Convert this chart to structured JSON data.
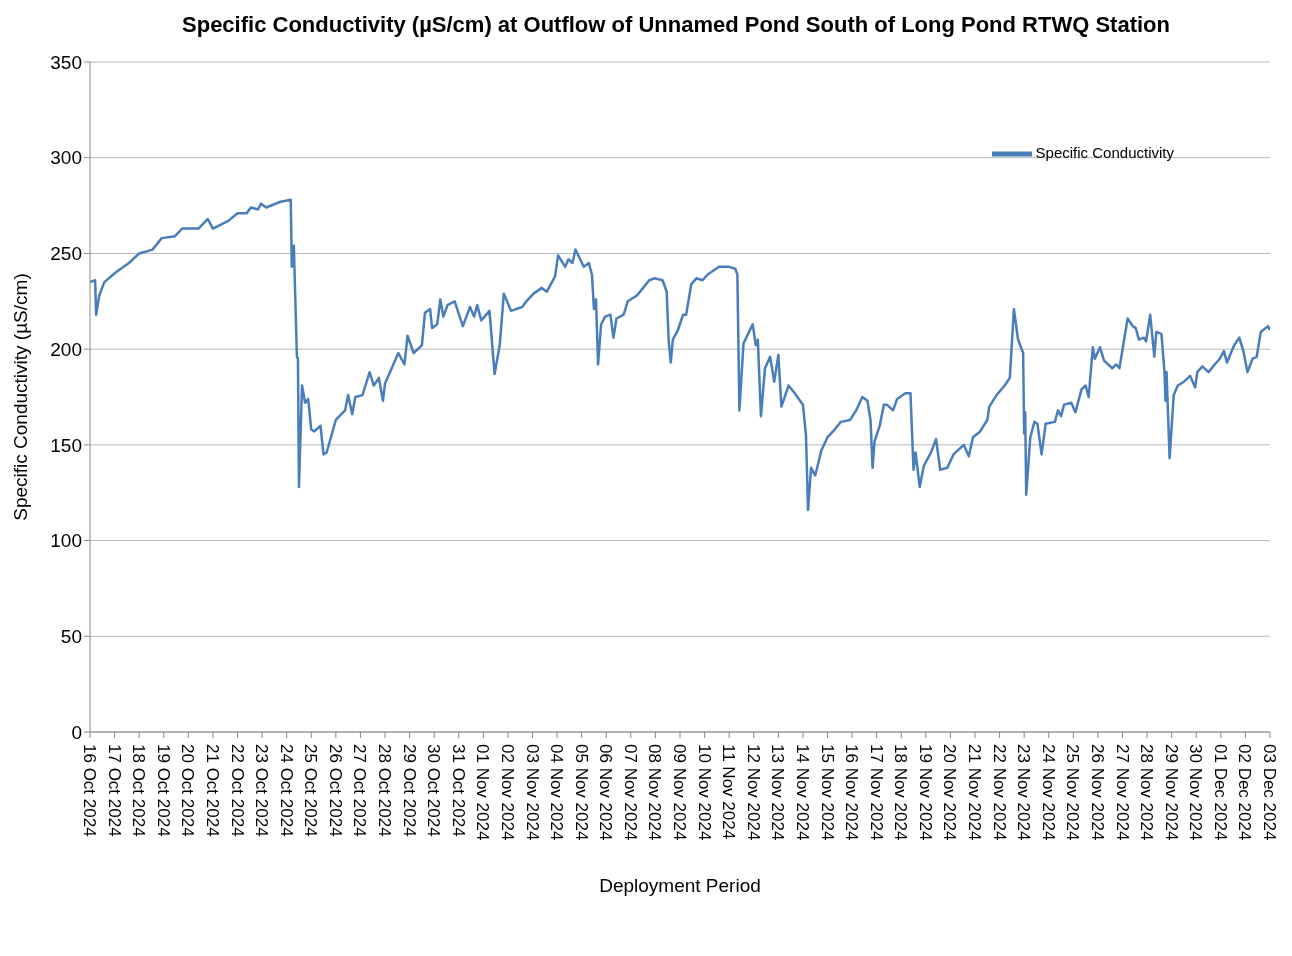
{
  "chart_data": {
    "type": "line",
    "title": "Specific Conductivity (µS/cm) at Outflow of Unnamed Pond South of Long Pond RTWQ Station",
    "xlabel": "Deployment Period",
    "ylabel": "Specific Conductivity (µS/cm)",
    "x": [
      "2024-10-16T00:00",
      "2024-10-16T05:00",
      "2024-10-16T06:00",
      "2024-10-16T09:00",
      "2024-10-16T14:00",
      "2024-10-17T01:00",
      "2024-10-17T14:00",
      "2024-10-18T00:00",
      "2024-10-18T13:00",
      "2024-10-18T22:00",
      "2024-10-19T11:00",
      "2024-10-19T18:00",
      "2024-10-20T10:00",
      "2024-10-20T19:00",
      "2024-10-21T00:00",
      "2024-10-21T15:00",
      "2024-10-22T00:00",
      "2024-10-22T09:00",
      "2024-10-22T13:00",
      "2024-10-22T20:00",
      "2024-10-22T23:00",
      "2024-10-23T04:00",
      "2024-10-23T18:00",
      "2024-10-24T04:00",
      "2024-10-24T05:00",
      "2024-10-24T07:00",
      "2024-10-24T10:00",
      "2024-10-24T11:00",
      "2024-10-24T12:00",
      "2024-10-24T15:00",
      "2024-10-24T18:00",
      "2024-10-24T21:00",
      "2024-10-25T00:00",
      "2024-10-25T03:00",
      "2024-10-25T09:00",
      "2024-10-25T12:00",
      "2024-10-25T15:00",
      "2024-10-26T00:00",
      "2024-10-26T09:00",
      "2024-10-26T12:00",
      "2024-10-26T16:00",
      "2024-10-26T19:00",
      "2024-10-27T02:00",
      "2024-10-27T09:00",
      "2024-10-27T13:00",
      "2024-10-27T18:00",
      "2024-10-27T22:00",
      "2024-10-28T00:00",
      "2024-10-28T05:00",
      "2024-10-28T13:00",
      "2024-10-28T19:00",
      "2024-10-28T22:00",
      "2024-10-29T04:00",
      "2024-10-29T12:00",
      "2024-10-29T15:00",
      "2024-10-29T20:00",
      "2024-10-29T22:00",
      "2024-10-30T03:00",
      "2024-10-30T06:00",
      "2024-10-30T09:00",
      "2024-10-30T13:00",
      "2024-10-30T20:00",
      "2024-10-31T04:00",
      "2024-10-31T11:00",
      "2024-10-31T15:00",
      "2024-10-31T18:00",
      "2024-10-31T22:00",
      "2024-11-01T06:00",
      "2024-11-01T11:00",
      "2024-11-01T16:00",
      "2024-11-01T20:00",
      "2024-11-02T03:00",
      "2024-11-02T14:00",
      "2024-11-02T18:00",
      "2024-11-03T01:00",
      "2024-11-03T09:00",
      "2024-11-03T14:00",
      "2024-11-03T22:00",
      "2024-11-04T01:00",
      "2024-11-04T08:00",
      "2024-11-04T11:00",
      "2024-11-04T15:00",
      "2024-11-04T18:00",
      "2024-11-05T02:00",
      "2024-11-05T07:00",
      "2024-11-05T10:00",
      "2024-11-05T12:00",
      "2024-11-05T14:00",
      "2024-11-05T16:00",
      "2024-11-05T19:00",
      "2024-11-05T23:00",
      "2024-11-06T04:00",
      "2024-11-06T07:00",
      "2024-11-06T10:00",
      "2024-11-06T17:00",
      "2024-11-06T21:00",
      "2024-11-07T06:00",
      "2024-11-07T12:00",
      "2024-11-07T18:00",
      "2024-11-07T23:00",
      "2024-11-08T07:00",
      "2024-11-08T11:00",
      "2024-11-08T13:00",
      "2024-11-08T15:00",
      "2024-11-08T17:00",
      "2024-11-08T22:00",
      "2024-11-09T03:00",
      "2024-11-09T06:00",
      "2024-11-09T11:00",
      "2024-11-09T16:00",
      "2024-11-09T22:00",
      "2024-11-10T03:00",
      "2024-11-10T14:00",
      "2024-11-11T00:00",
      "2024-11-11T06:00",
      "2024-11-11T08:00",
      "2024-11-11T10:00",
      "2024-11-11T14:00",
      "2024-11-11T23:00",
      "2024-11-12T02:00",
      "2024-11-12T04:00",
      "2024-11-12T07:00",
      "2024-11-12T11:00",
      "2024-11-12T16:00",
      "2024-11-12T20:00",
      "2024-11-13T00:00",
      "2024-11-13T03:00",
      "2024-11-13T10:00",
      "2024-11-13T16:00",
      "2024-11-14T00:00",
      "2024-11-14T03:00",
      "2024-11-14T05:00",
      "2024-11-14T08:00",
      "2024-11-14T12:00",
      "2024-11-14T18:00",
      "2024-11-15T00:00",
      "2024-11-15T07:00",
      "2024-11-15T13:00",
      "2024-11-15T22:00",
      "2024-11-16T04:00",
      "2024-11-16T10:00",
      "2024-11-16T15:00",
      "2024-11-16T18:00",
      "2024-11-16T20:00",
      "2024-11-16T22:00",
      "2024-11-17T03:00",
      "2024-11-17T07:00",
      "2024-11-17T10:00",
      "2024-11-17T16:00",
      "2024-11-17T20:00",
      "2024-11-18T04:00",
      "2024-11-18T09:00",
      "2024-11-18T12:00",
      "2024-11-18T14:00",
      "2024-11-18T18:00",
      "2024-11-18T22:00",
      "2024-11-19T05:00",
      "2024-11-19T10:00",
      "2024-11-19T14:00",
      "2024-11-19T21:00",
      "2024-11-20T03:00",
      "2024-11-20T13:00",
      "2024-11-20T18:00",
      "2024-11-20T22:00",
      "2024-11-21T05:00",
      "2024-11-21T12:00",
      "2024-11-21T14:00",
      "2024-11-21T21:00",
      "2024-11-22T05:00",
      "2024-11-22T10:00",
      "2024-11-22T14:00",
      "2024-11-22T18:00",
      "2024-11-22T23:00",
      "2024-11-23T00:00",
      "2024-11-23T01:00",
      "2024-11-23T02:00",
      "2024-11-23T06:00",
      "2024-11-23T10:00",
      "2024-11-23T13:00",
      "2024-11-23T17:00",
      "2024-11-23T21:00",
      "2024-11-24T06:00",
      "2024-11-24T09:00",
      "2024-11-24T12:00",
      "2024-11-24T15:00",
      "2024-11-24T22:00",
      "2024-11-25T02:00",
      "2024-11-25T08:00",
      "2024-11-25T12:00",
      "2024-11-25T15:00",
      "2024-11-25T19:00",
      "2024-11-25T21:00",
      "2024-11-26T02:00",
      "2024-11-26T06:00",
      "2024-11-26T14:00",
      "2024-11-26T18:00",
      "2024-11-26T21:00",
      "2024-11-27T05:00",
      "2024-11-27T10:00",
      "2024-11-27T13:00",
      "2024-11-27T16:00",
      "2024-11-27T21:00",
      "2024-11-27T23:00",
      "2024-11-28T03:00",
      "2024-11-28T06:00",
      "2024-11-28T07:00",
      "2024-11-28T09:00",
      "2024-11-28T14:00",
      "2024-11-28T17:00",
      "2024-11-28T18:00",
      "2024-11-28T19:00",
      "2024-11-28T22:00",
      "2024-11-29T02:00",
      "2024-11-29T06:00",
      "2024-11-29T12:00",
      "2024-11-29T18:00",
      "2024-11-29T23:00",
      "2024-11-30T01:00",
      "2024-11-30T06:00",
      "2024-11-30T12:00",
      "2024-11-30T18:00",
      "2024-11-30T23:00",
      "2024-12-01T03:00",
      "2024-12-01T06:00",
      "2024-12-01T13:00",
      "2024-12-01T18:00",
      "2024-12-01T22:00",
      "2024-12-02T02:00",
      "2024-12-02T07:00",
      "2024-12-02T11:00",
      "2024-12-02T15:00",
      "2024-12-02T22:00",
      "2024-12-03T00:00"
    ],
    "series": [
      {
        "name": "Specific Conductivity",
        "color": "#4a7ebb",
        "values": [
          235,
          236,
          218,
          228,
          235,
          240,
          245,
          250,
          252,
          258,
          259,
          263,
          263,
          268,
          263,
          267,
          271,
          271,
          274,
          273,
          276,
          274,
          277,
          278,
          243,
          254,
          196,
          195,
          128,
          181,
          172,
          174,
          158,
          157,
          160,
          145,
          146,
          163,
          168,
          176,
          166,
          175,
          176,
          188,
          181,
          185,
          173,
          182,
          188,
          198,
          192,
          207,
          198,
          202,
          219,
          221,
          211,
          213,
          226,
          217,
          223,
          225,
          212,
          222,
          217,
          223,
          215,
          220,
          187,
          202,
          229,
          220,
          222,
          225,
          229,
          232,
          230,
          238,
          249,
          243,
          247,
          245,
          252,
          243,
          245,
          239,
          221,
          226,
          192,
          213,
          217,
          218,
          206,
          216,
          218,
          225,
          228,
          232,
          236,
          237,
          236,
          230,
          204,
          193,
          205,
          210,
          218,
          218,
          234,
          237,
          236,
          239,
          243,
          243,
          242,
          239,
          168,
          203,
          213,
          202,
          205,
          165,
          190,
          196,
          183,
          197,
          170,
          181,
          177,
          171,
          155,
          116,
          138,
          134,
          147,
          154,
          158,
          162,
          163,
          168,
          175,
          173,
          163,
          138,
          152,
          160,
          171,
          171,
          168,
          174,
          177,
          177,
          137,
          146,
          128,
          139,
          146,
          153,
          137,
          138,
          145,
          150,
          144,
          154,
          157,
          163,
          170,
          176,
          181,
          185,
          221,
          205,
          198,
          156,
          167,
          124,
          154,
          162,
          161,
          145,
          161,
          162,
          168,
          165,
          171,
          172,
          167,
          179,
          181,
          175,
          201,
          195,
          201,
          194,
          190,
          192,
          190,
          216,
          212,
          211,
          205,
          206,
          204,
          218,
          202,
          196,
          209,
          208,
          188,
          173,
          188,
          143,
          176,
          181,
          183,
          186,
          180,
          188,
          191,
          188,
          192,
          195,
          199,
          193,
          202,
          206,
          199,
          188,
          195,
          196,
          209,
          212,
          210
        ]
      }
    ],
    "xlim": [
      "2024-10-16",
      "2024-12-03"
    ],
    "xticks": [
      {
        "value": "2024-10-16",
        "label": "16 Oct 2024"
      },
      {
        "value": "2024-10-17",
        "label": "17 Oct 2024"
      },
      {
        "value": "2024-10-18",
        "label": "18 Oct 2024"
      },
      {
        "value": "2024-10-19",
        "label": "19 Oct 2024"
      },
      {
        "value": "2024-10-20",
        "label": "20 Oct 2024"
      },
      {
        "value": "2024-10-21",
        "label": "21 Oct 2024"
      },
      {
        "value": "2024-10-22",
        "label": "22 Oct 2024"
      },
      {
        "value": "2024-10-23",
        "label": "23 Oct 2024"
      },
      {
        "value": "2024-10-24",
        "label": "24 Oct 2024"
      },
      {
        "value": "2024-10-25",
        "label": "25 Oct 2024"
      },
      {
        "value": "2024-10-26",
        "label": "26 Oct 2024"
      },
      {
        "value": "2024-10-27",
        "label": "27 Oct 2024"
      },
      {
        "value": "2024-10-28",
        "label": "28 Oct 2024"
      },
      {
        "value": "2024-10-29",
        "label": "29 Oct 2024"
      },
      {
        "value": "2024-10-30",
        "label": "30 Oct 2024"
      },
      {
        "value": "2024-10-31",
        "label": "31 Oct 2024"
      },
      {
        "value": "2024-11-01",
        "label": "01 Nov 2024"
      },
      {
        "value": "2024-11-02",
        "label": "02 Nov 2024"
      },
      {
        "value": "2024-11-03",
        "label": "03 Nov 2024"
      },
      {
        "value": "2024-11-04",
        "label": "04 Nov 2024"
      },
      {
        "value": "2024-11-05",
        "label": "05 Nov 2024"
      },
      {
        "value": "2024-11-06",
        "label": "06 Nov 2024"
      },
      {
        "value": "2024-11-07",
        "label": "07 Nov 2024"
      },
      {
        "value": "2024-11-08",
        "label": "08 Nov 2024"
      },
      {
        "value": "2024-11-09",
        "label": "09 Nov 2024"
      },
      {
        "value": "2024-11-10",
        "label": "10 Nov 2024"
      },
      {
        "value": "2024-11-11",
        "label": "11 Nov 2024"
      },
      {
        "value": "2024-11-12",
        "label": "12 Nov 2024"
      },
      {
        "value": "2024-11-13",
        "label": "13 Nov 2024"
      },
      {
        "value": "2024-11-14",
        "label": "14 Nov 2024"
      },
      {
        "value": "2024-11-15",
        "label": "15 Nov 2024"
      },
      {
        "value": "2024-11-16",
        "label": "16 Nov 2024"
      },
      {
        "value": "2024-11-17",
        "label": "17 Nov 2024"
      },
      {
        "value": "2024-11-18",
        "label": "18 Nov 2024"
      },
      {
        "value": "2024-11-19",
        "label": "19 Nov 2024"
      },
      {
        "value": "2024-11-20",
        "label": "20 Nov 2024"
      },
      {
        "value": "2024-11-21",
        "label": "21 Nov 2024"
      },
      {
        "value": "2024-11-22",
        "label": "22 Nov 2024"
      },
      {
        "value": "2024-11-23",
        "label": "23 Nov 2024"
      },
      {
        "value": "2024-11-24",
        "label": "24 Nov 2024"
      },
      {
        "value": "2024-11-25",
        "label": "25 Nov 2024"
      },
      {
        "value": "2024-11-26",
        "label": "26 Nov 2024"
      },
      {
        "value": "2024-11-27",
        "label": "27 Nov 2024"
      },
      {
        "value": "2024-11-28",
        "label": "28 Nov 2024"
      },
      {
        "value": "2024-11-29",
        "label": "29 Nov 2024"
      },
      {
        "value": "2024-11-30",
        "label": "30 Nov 2024"
      },
      {
        "value": "2024-12-01",
        "label": "01 Dec 2024"
      },
      {
        "value": "2024-12-02",
        "label": "02 Dec 2024"
      },
      {
        "value": "2024-12-03",
        "label": "03 Dec 2024"
      }
    ],
    "ylim": [
      0,
      350
    ],
    "yticks": [
      0,
      50,
      100,
      150,
      200,
      250,
      300,
      350
    ],
    "grid": "y",
    "legend": "top right",
    "marker": "none",
    "line_style": "solid"
  }
}
